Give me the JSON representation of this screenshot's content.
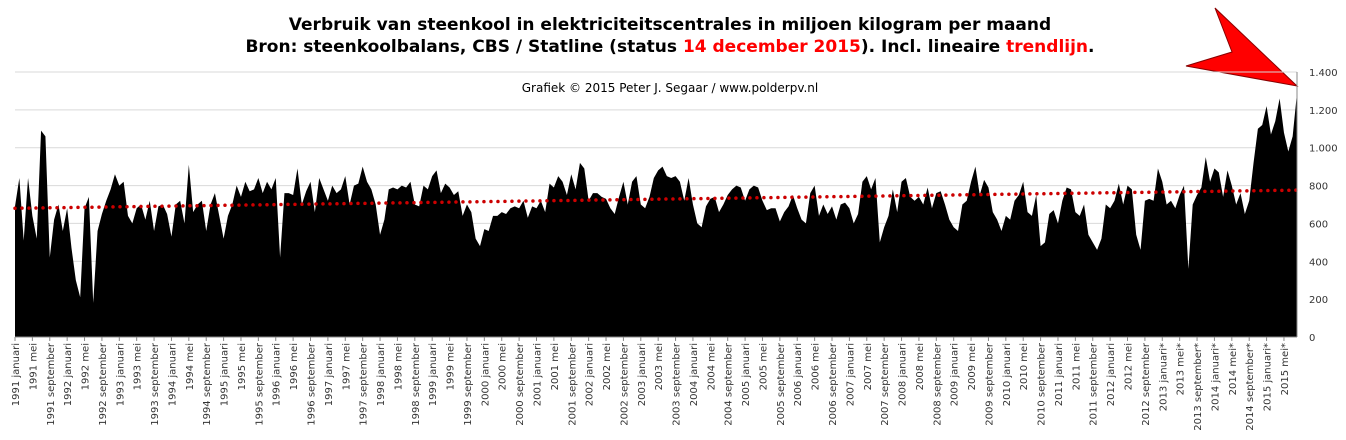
{
  "chart_data": {
    "type": "area",
    "title": "Verbruik van steenkool in elektriciteitscentrales in miljoen kilogram per maand",
    "title_line2": [
      "Bron: steenkoolbalans, CBS / Statline (status ",
      "14 december 2015",
      "). Incl. lineaire ",
      "trendlijn",
      "."
    ],
    "subtitle": "Grafiek  © 2015  Peter J. Segaar / www.polderpv.nl",
    "color": "#000000",
    "highlight_color": "#ff0000",
    "trendline": {
      "color": "#cc0000",
      "start": 680,
      "end": 776
    },
    "ylim": [
      0,
      1400
    ],
    "yticks": [
      0,
      200,
      400,
      600,
      800,
      {
        "value": 1000,
        "label": "1.000"
      },
      {
        "value": 1200,
        "label": "1.200"
      },
      {
        "value": 1400,
        "label": "1.400"
      }
    ],
    "grid": true,
    "categories": [
      "1991 januari",
      null,
      null,
      null,
      "1991 mei",
      null,
      null,
      null,
      "1991 september",
      null,
      null,
      null,
      "1992 januari",
      null,
      null,
      null,
      "1992 mei",
      null,
      null,
      null,
      "1992 september",
      null,
      null,
      null,
      "1993 januari",
      null,
      null,
      null,
      "1993 mei",
      null,
      null,
      null,
      "1993 september",
      null,
      null,
      null,
      "1994 januari",
      null,
      null,
      null,
      "1994 mei",
      null,
      null,
      null,
      "1994 september",
      null,
      null,
      null,
      "1995 januari",
      null,
      null,
      null,
      "1995 mei",
      null,
      null,
      null,
      "1995 september",
      null,
      null,
      null,
      "1996 januari",
      null,
      null,
      null,
      "1996 mei",
      null,
      null,
      null,
      "1996 september",
      null,
      null,
      null,
      "1997 januari",
      null,
      null,
      null,
      "1997 mei",
      null,
      null,
      null,
      "1997 september",
      null,
      null,
      null,
      "1998 januari",
      null,
      null,
      null,
      "1998 mei",
      null,
      null,
      null,
      "1998 september",
      null,
      null,
      null,
      "1999 januari",
      null,
      null,
      null,
      "1999 mei",
      null,
      null,
      null,
      "1999 september",
      null,
      null,
      null,
      "2000 januari",
      null,
      null,
      null,
      "2000 mei",
      null,
      null,
      null,
      "2000 september",
      null,
      null,
      null,
      "2001 januari",
      null,
      null,
      null,
      "2001 mei",
      null,
      null,
      null,
      "2001 september",
      null,
      null,
      null,
      "2002 januari",
      null,
      null,
      null,
      "2002 mei",
      null,
      null,
      null,
      "2002 september",
      null,
      null,
      null,
      "2003 januari",
      null,
      null,
      null,
      "2003 mei",
      null,
      null,
      null,
      "2003 september",
      null,
      null,
      null,
      "2004 januari",
      null,
      null,
      null,
      "2004 mei",
      null,
      null,
      null,
      "2004 september",
      null,
      null,
      null,
      "2005 januari",
      null,
      null,
      null,
      "2005 mei",
      null,
      null,
      null,
      "2005 september",
      null,
      null,
      null,
      "2006 januari",
      null,
      null,
      null,
      "2006 mei",
      null,
      null,
      null,
      "2006 september",
      null,
      null,
      null,
      "2007 januari",
      null,
      null,
      null,
      "2007 mei",
      null,
      null,
      null,
      "2007 september",
      null,
      null,
      null,
      "2008 januari",
      null,
      null,
      null,
      "2008 mei",
      null,
      null,
      null,
      "2008 september",
      null,
      null,
      null,
      "2009 januari",
      null,
      null,
      null,
      "2009 mei",
      null,
      null,
      null,
      "2009 september",
      null,
      null,
      null,
      "2010 januari",
      null,
      null,
      null,
      "2010 mei",
      null,
      null,
      null,
      "2010 september",
      null,
      null,
      null,
      "2011 januari",
      null,
      null,
      null,
      "2011 mei",
      null,
      null,
      null,
      "2011 september",
      null,
      null,
      null,
      "2012 januari",
      null,
      null,
      null,
      "2012 mei",
      null,
      null,
      null,
      "2012 september",
      null,
      null,
      null,
      "2013 januari*",
      null,
      null,
      null,
      "2013 mei*",
      null,
      null,
      null,
      "2013 september*",
      null,
      null,
      null,
      "2014 januari*",
      null,
      null,
      null,
      "2014 mei*",
      null,
      null,
      null,
      "2014 september*",
      null,
      null,
      null,
      "2015 januari*",
      null,
      null,
      null,
      "2015 mei*",
      null,
      null,
      null
    ],
    "values": [
      690,
      840,
      510,
      840,
      640,
      520,
      1090,
      1060,
      420,
      620,
      700,
      560,
      680,
      470,
      300,
      210,
      680,
      740,
      180,
      560,
      650,
      720,
      780,
      860,
      800,
      820,
      640,
      600,
      680,
      700,
      620,
      720,
      560,
      690,
      700,
      650,
      530,
      700,
      720,
      600,
      910,
      660,
      700,
      720,
      560,
      700,
      760,
      640,
      520,
      640,
      700,
      800,
      740,
      820,
      770,
      780,
      840,
      760,
      820,
      780,
      840,
      420,
      760,
      760,
      750,
      890,
      700,
      770,
      820,
      660,
      840,
      780,
      720,
      800,
      760,
      780,
      850,
      700,
      800,
      810,
      900,
      820,
      780,
      700,
      540,
      620,
      780,
      790,
      780,
      800,
      790,
      820,
      700,
      690,
      800,
      780,
      850,
      880,
      760,
      810,
      790,
      750,
      770,
      640,
      700,
      660,
      520,
      480,
      570,
      560,
      640,
      640,
      660,
      650,
      680,
      690,
      680,
      720,
      630,
      690,
      680,
      720,
      660,
      810,
      790,
      850,
      820,
      750,
      860,
      780,
      920,
      890,
      720,
      760,
      760,
      740,
      730,
      680,
      650,
      740,
      820,
      700,
      820,
      850,
      700,
      680,
      740,
      840,
      880,
      900,
      850,
      840,
      850,
      820,
      720,
      840,
      700,
      600,
      580,
      690,
      730,
      740,
      660,
      700,
      750,
      780,
      800,
      790,
      720,
      780,
      800,
      790,
      720,
      670,
      680,
      680,
      610,
      660,
      690,
      750,
      680,
      620,
      600,
      760,
      800,
      640,
      700,
      650,
      690,
      620,
      700,
      710,
      680,
      600,
      650,
      820,
      850,
      780,
      840,
      500,
      580,
      640,
      780,
      660,
      820,
      840,
      740,
      720,
      740,
      700,
      790,
      680,
      760,
      770,
      700,
      620,
      580,
      560,
      700,
      720,
      820,
      900,
      750,
      830,
      790,
      660,
      620,
      560,
      640,
      620,
      720,
      750,
      820,
      660,
      640,
      750,
      480,
      500,
      650,
      670,
      600,
      720,
      790,
      780,
      660,
      640,
      700,
      540,
      500,
      460,
      520,
      700,
      680,
      720,
      810,
      700,
      800,
      780,
      540,
      460,
      720,
      730,
      720,
      890,
      820,
      700,
      720,
      680,
      750,
      800,
      360,
      700,
      750,
      790,
      950,
      820,
      890,
      870,
      740,
      880,
      800,
      700,
      760,
      650,
      720,
      920,
      1100,
      1120,
      1220,
      1070,
      1140,
      1260,
      1080,
      980,
      1060,
      1290
    ]
  }
}
